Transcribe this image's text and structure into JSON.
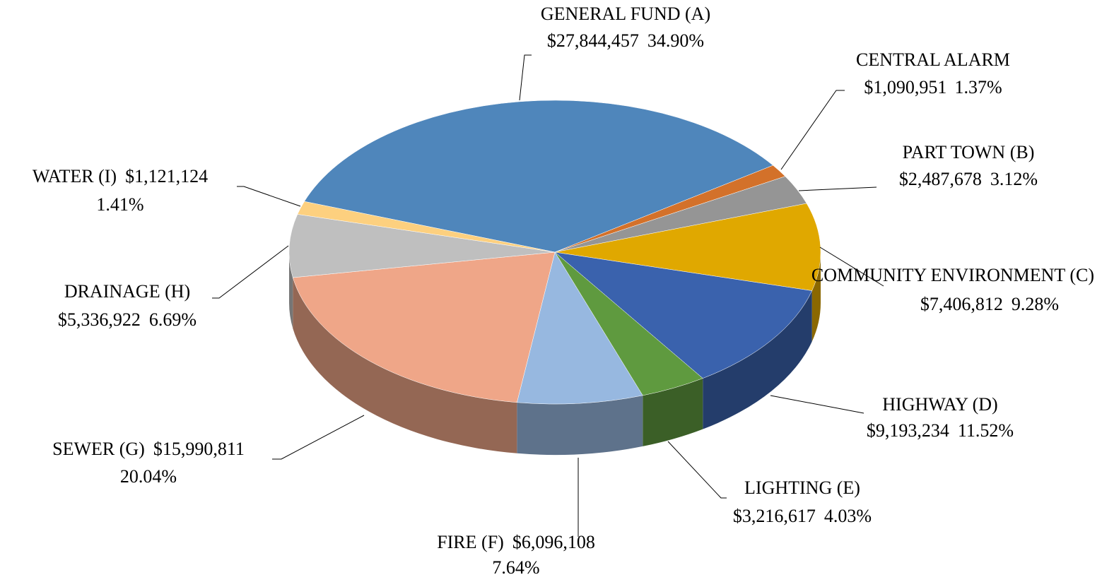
{
  "chart_data": {
    "type": "pie3d",
    "categories": [
      "GENERAL FUND (A)",
      "CENTRAL ALARM",
      "PART TOWN (B)",
      "COMMUNITY ENVIRONMENT (C)",
      "HIGHWAY (D)",
      "LIGHTING (E)",
      "FIRE (F)",
      "SEWER (G)",
      "DRAINAGE (H)",
      "WATER (I)"
    ],
    "values": [
      27844457,
      1090951,
      2487678,
      7406812,
      9193234,
      3216617,
      6096108,
      15990811,
      5336922,
      1121124
    ],
    "value_labels": [
      "$27,844,457",
      "$1,090,951",
      "$2,487,678",
      "$7,406,812",
      "$9,193,234",
      "$3,216,617",
      "$6,096,108",
      "$15,990,811",
      "$5,336,922",
      "$1,121,124"
    ],
    "percents": [
      34.9,
      1.37,
      3.12,
      9.28,
      11.52,
      4.03,
      7.64,
      20.04,
      6.69,
      1.41
    ],
    "percent_labels": [
      "34.90%",
      "1.37%",
      "3.12%",
      "9.28%",
      "11.52%",
      "4.03%",
      "7.64%",
      "20.04%",
      "6.69%",
      "1.41%"
    ],
    "colors": [
      "#4f86bb",
      "#d3712a",
      "#959595",
      "#e0a800",
      "#3a62ad",
      "#5f9a3f",
      "#97b8e0",
      "#efa688",
      "#bfbfbf",
      "#fdd07f"
    ]
  }
}
